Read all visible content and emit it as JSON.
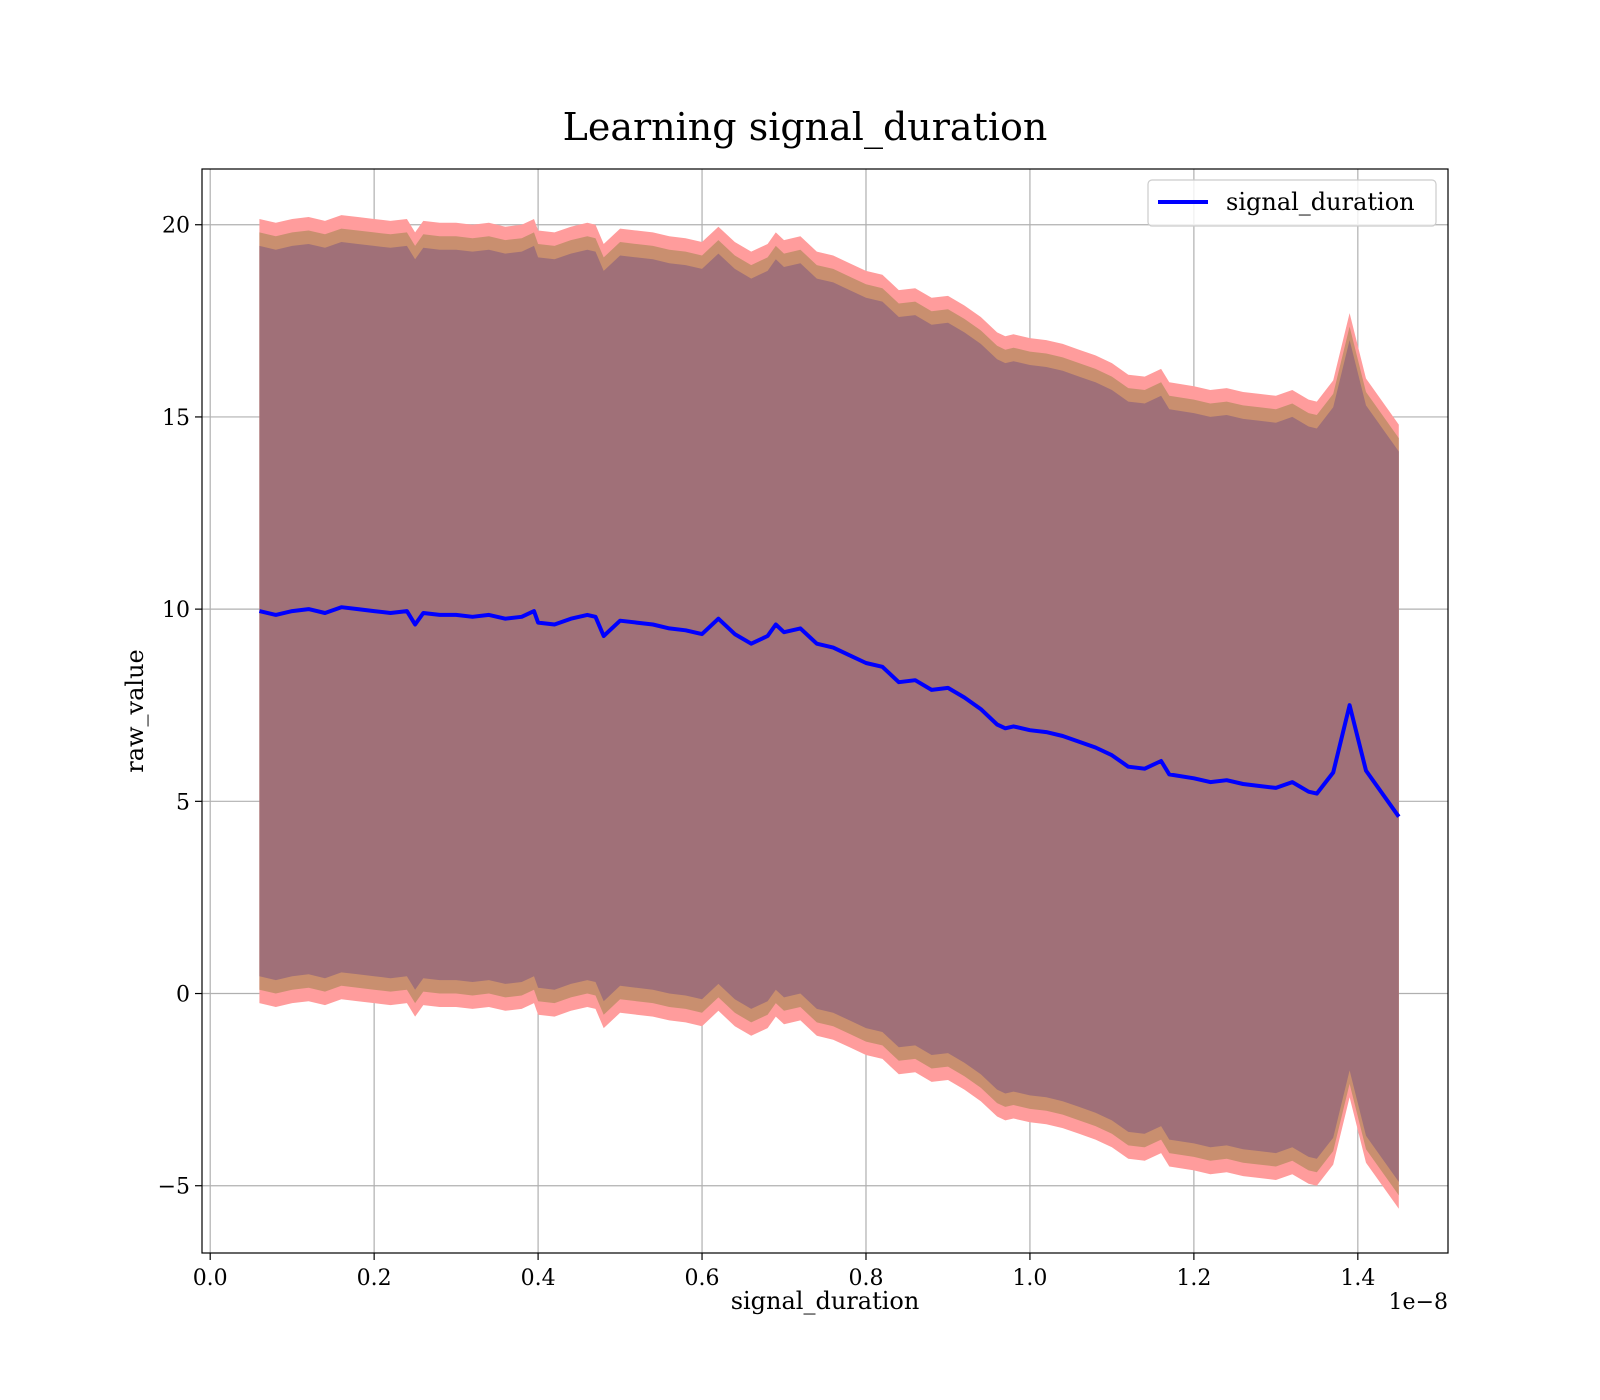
{
  "chart_data": {
    "type": "line",
    "title": "Learning signal_duration",
    "xlabel": "signal_duration",
    "ylabel": "raw_value",
    "x_offset_text": "1e−8",
    "xlim": [
      -0.01,
      1.51
    ],
    "ylim": [
      -6.75,
      21.45
    ],
    "x_ticks": [
      0.0,
      0.2,
      0.4,
      0.6,
      0.8,
      1.0,
      1.2,
      1.4
    ],
    "x_tick_labels": [
      "0.0",
      "0.2",
      "0.4",
      "0.6",
      "0.8",
      "1.0",
      "1.2",
      "1.4"
    ],
    "y_ticks": [
      -5,
      0,
      5,
      10,
      15,
      20
    ],
    "y_tick_labels": [
      "−5",
      "0",
      "5",
      "10",
      "15",
      "20"
    ],
    "grid": true,
    "legend": {
      "position": "top-right",
      "entries": [
        "signal_duration"
      ]
    },
    "colors": {
      "line": "#0000ff",
      "band_outer": "#ff9c9c",
      "band_middle": "#c98f6f",
      "band_inner": "#a07078",
      "grid": "#b0b0b0"
    },
    "series": [
      {
        "name": "signal_duration",
        "x": [
          0.06,
          0.08,
          0.1,
          0.12,
          0.14,
          0.16,
          0.18,
          0.2,
          0.22,
          0.24,
          0.25,
          0.26,
          0.28,
          0.3,
          0.32,
          0.34,
          0.36,
          0.38,
          0.395,
          0.4,
          0.42,
          0.44,
          0.46,
          0.47,
          0.48,
          0.5,
          0.52,
          0.54,
          0.56,
          0.58,
          0.6,
          0.62,
          0.64,
          0.66,
          0.68,
          0.69,
          0.7,
          0.72,
          0.74,
          0.76,
          0.78,
          0.8,
          0.82,
          0.84,
          0.86,
          0.88,
          0.9,
          0.92,
          0.94,
          0.96,
          0.97,
          0.98,
          1.0,
          1.02,
          1.04,
          1.06,
          1.08,
          1.1,
          1.12,
          1.14,
          1.16,
          1.17,
          1.2,
          1.22,
          1.24,
          1.26,
          1.28,
          1.3,
          1.32,
          1.34,
          1.35,
          1.37,
          1.39,
          1.41,
          1.45
        ],
        "y": [
          9.95,
          9.85,
          9.95,
          10.0,
          9.9,
          10.05,
          10.0,
          9.95,
          9.9,
          9.95,
          9.6,
          9.9,
          9.85,
          9.85,
          9.8,
          9.85,
          9.75,
          9.8,
          9.95,
          9.65,
          9.6,
          9.75,
          9.85,
          9.8,
          9.3,
          9.7,
          9.65,
          9.6,
          9.5,
          9.45,
          9.35,
          9.75,
          9.35,
          9.1,
          9.3,
          9.6,
          9.4,
          9.5,
          9.1,
          9.0,
          8.8,
          8.6,
          8.5,
          8.1,
          8.15,
          7.9,
          7.95,
          7.7,
          7.4,
          7.0,
          6.9,
          6.95,
          6.85,
          6.8,
          6.7,
          6.55,
          6.4,
          6.2,
          5.9,
          5.85,
          6.05,
          5.7,
          5.6,
          5.5,
          5.55,
          5.45,
          5.4,
          5.35,
          5.5,
          5.25,
          5.2,
          5.75,
          7.5,
          5.8,
          4.6
        ]
      }
    ],
    "bands": [
      {
        "label": "outer",
        "half_width": 10.2
      },
      {
        "label": "middle",
        "half_width": 9.85
      },
      {
        "label": "inner",
        "half_width": 9.5
      }
    ]
  }
}
